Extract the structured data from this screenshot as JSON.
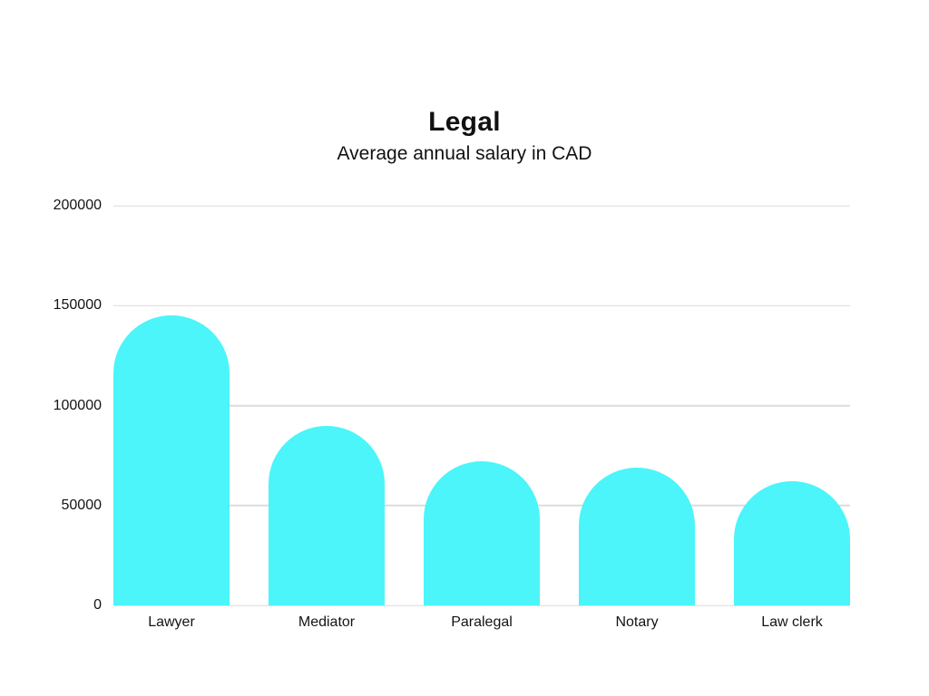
{
  "page": {
    "background_color": "#FFFFFF"
  },
  "chart_data": {
    "type": "bar",
    "title": "Legal",
    "subtitle": "Average annual salary in CAD",
    "categories": [
      "Lawyer",
      "Mediator",
      "Paralegal",
      "Notary",
      "Law clerk"
    ],
    "values": [
      145000,
      90000,
      72000,
      69000,
      62000
    ],
    "xlabel": "",
    "ylabel": "",
    "ylim": [
      0,
      200000
    ],
    "yticks": [
      0,
      50000,
      100000,
      150000,
      200000
    ],
    "ytick_labels": [
      "0",
      "50000",
      "100000",
      "150000",
      "200000"
    ],
    "grid": true,
    "legend": false,
    "bar_color": "#4BF5F9",
    "gridline_color": "#DCDCDC",
    "text_color": "#141414"
  }
}
